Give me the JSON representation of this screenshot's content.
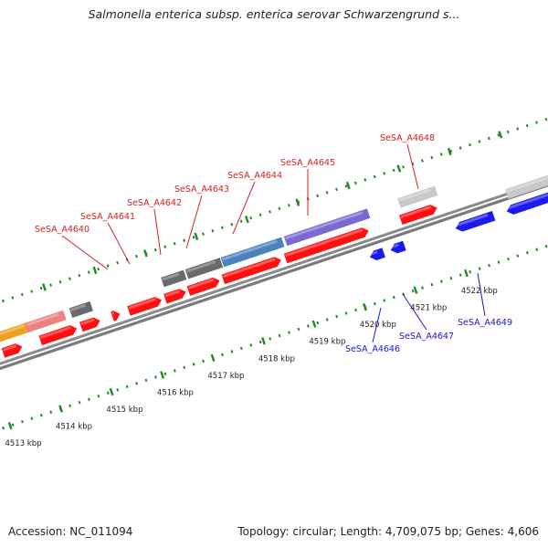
{
  "title": "Salmonella enterica subsp. enterica serovar Schwarzengrund s...",
  "footer": {
    "accession": "Accession: NC_011094",
    "summary": "Topology: circular; Length: 4,709,075 bp; Genes: 4,606"
  },
  "scale": {
    "ticks": [
      {
        "label": "4513 kbp"
      },
      {
        "label": "4514 kbp"
      },
      {
        "label": "4515 kbp"
      },
      {
        "label": "4516 kbp"
      },
      {
        "label": "4517 kbp"
      },
      {
        "label": "4518 kbp"
      },
      {
        "label": "4519 kbp"
      },
      {
        "label": "4520 kbp"
      },
      {
        "label": "4521 kbp"
      },
      {
        "label": "4522 kbp"
      }
    ]
  },
  "colors": {
    "backbone": "#7d7d7d",
    "tick": "#1f8a1f",
    "forward_label": "#d42020",
    "reverse_label": "#1a1acc",
    "red_gene": "#ff1010",
    "blue_gene": "#1a1aee",
    "pink_gene": "#ef8080",
    "orange_gene": "#f0a020",
    "dark_gray_gene": "#6a6a6a",
    "light_gray_gene": "#c8c8c8",
    "steel_blue_gene": "#4a82bd",
    "purple_gene": "#7b68d0"
  },
  "gene_labels": [
    {
      "id": "SeSA_A4640",
      "strand": "forward"
    },
    {
      "id": "SeSA_A4641",
      "strand": "forward"
    },
    {
      "id": "SeSA_A4642",
      "strand": "forward"
    },
    {
      "id": "SeSA_A4643",
      "strand": "forward"
    },
    {
      "id": "SeSA_A4644",
      "strand": "forward"
    },
    {
      "id": "SeSA_A4645",
      "strand": "forward"
    },
    {
      "id": "SeSA_A4648",
      "strand": "forward"
    },
    {
      "id": "SeSA_A4646",
      "strand": "reverse"
    },
    {
      "id": "SeSA_A4647",
      "strand": "reverse"
    },
    {
      "id": "SeSA_A4649",
      "strand": "reverse"
    }
  ]
}
